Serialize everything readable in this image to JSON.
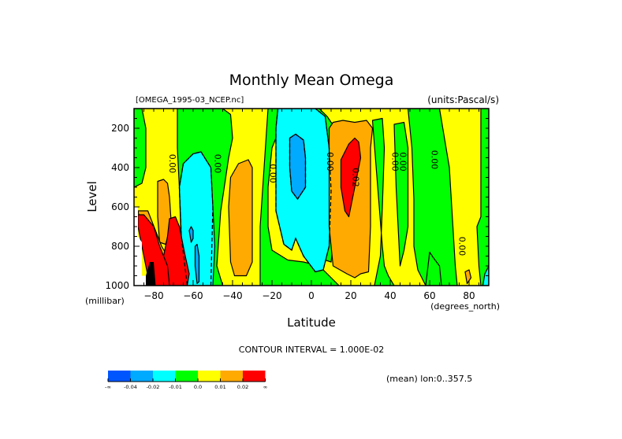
{
  "chart_data": {
    "type": "heatmap",
    "subtype": "filled-contour",
    "title": "Monthly Mean Omega",
    "file_label": "[OMEGA_1995-03_NCEP.nc]",
    "units_label": "(units:Pascal/s)",
    "xlabel": "Latitude",
    "x_units": "(degrees_north)",
    "ylabel": "Level",
    "y_units": "(millibar)",
    "xlim": [
      -90,
      90
    ],
    "ylim": [
      1000,
      100
    ],
    "x_ticks": [
      -80,
      -60,
      -40,
      -20,
      0,
      20,
      40,
      60,
      80
    ],
    "x_tick_labels": [
      "-80",
      "-60",
      "-40",
      "-20",
      "0",
      "20",
      "40",
      "60",
      "80"
    ],
    "y_ticks": [
      200,
      400,
      600,
      800,
      1000
    ],
    "y_tick_labels": [
      "200",
      "400",
      "600",
      "800",
      "1000"
    ],
    "contour_interval_text": "CONTOUR INTERVAL = 1.000E-02",
    "footer_text": "(mean) lon:0..357.5",
    "colorbar": {
      "colors": [
        "#0055ff",
        "#00aaff",
        "#00ffff",
        "#00ff00",
        "#ffff00",
        "#ffaa00",
        "#ff0000"
      ],
      "labels": [
        "-∞",
        "-0.04",
        "-0.02",
        "-0.01",
        "0.0",
        "0.01",
        "0.02",
        "∞"
      ]
    },
    "contour_labels": [
      {
        "text": "0.00",
        "lat": -72,
        "lev": 380
      },
      {
        "text": "0.00",
        "lat": -49,
        "lev": 380
      },
      {
        "text": "0.00",
        "lat": -21,
        "lev": 430
      },
      {
        "text": "0.00",
        "lat": 8,
        "lev": 370
      },
      {
        "text": "0.02",
        "lat": 21,
        "lev": 450
      },
      {
        "text": "0.00",
        "lat": 41,
        "lev": 370
      },
      {
        "text": "0.00",
        "lat": 45,
        "lev": 370
      },
      {
        "text": "0.00",
        "lat": 61,
        "lev": 360
      },
      {
        "text": "0.00",
        "lat": 75,
        "lev": 800
      }
    ],
    "regions": [
      {
        "level": "0.0",
        "color": "#ffff00",
        "poly": [
          [
            -90,
            100
          ],
          [
            90,
            100
          ],
          [
            90,
            1000
          ],
          [
            -90,
            1000
          ]
        ]
      },
      {
        "level": "-0.01",
        "color": "#00ff00",
        "poly": [
          [
            -90,
            100
          ],
          [
            -86,
            100
          ],
          [
            -84,
            200
          ],
          [
            -84,
            400
          ],
          [
            -86,
            480
          ],
          [
            -90,
            500
          ]
        ]
      },
      {
        "level": "-0.01",
        "color": "#00ff00",
        "poly": [
          [
            -68,
            100
          ],
          [
            -45,
            100
          ],
          [
            -41,
            130
          ],
          [
            -40,
            250
          ],
          [
            -42,
            350
          ],
          [
            -46,
            620
          ],
          [
            -48,
            900
          ],
          [
            -45,
            1000
          ],
          [
            -62,
            1000
          ],
          [
            -66,
            800
          ],
          [
            -67,
            500
          ],
          [
            -68,
            300
          ]
        ]
      },
      {
        "level": "-0.01",
        "color": "#00ff00",
        "poly": [
          [
            -22,
            100
          ],
          [
            -12,
            100
          ],
          [
            -10,
            150
          ],
          [
            -16,
            200
          ],
          [
            -20,
            300
          ],
          [
            -22,
            500
          ],
          [
            -22,
            700
          ],
          [
            -20,
            820
          ],
          [
            -12,
            870
          ],
          [
            -4,
            880
          ],
          [
            4,
            900
          ],
          [
            10,
            960
          ],
          [
            14,
            1000
          ],
          [
            -26,
            1000
          ],
          [
            -26,
            700
          ],
          [
            -24,
            400
          ]
        ]
      },
      {
        "level": "-0.01",
        "color": "#00ff00",
        "poly": [
          [
            -4,
            100
          ],
          [
            4,
            100
          ],
          [
            8,
            140
          ],
          [
            12,
            200
          ],
          [
            12,
            700
          ],
          [
            10,
            880
          ],
          [
            4,
            860
          ],
          [
            -4,
            850
          ],
          [
            -8,
            300
          ]
        ]
      },
      {
        "level": "-0.01",
        "color": "#00ff00",
        "poly": [
          [
            -88,
            100
          ],
          [
            -90,
            100
          ]
        ]
      },
      {
        "level": "-0.01",
        "color": "#00ff00",
        "poly": [
          [
            31,
            160
          ],
          [
            36,
            150
          ],
          [
            37,
            300
          ],
          [
            36,
            600
          ],
          [
            35,
            850
          ],
          [
            32,
            1000
          ],
          [
            42,
            1000
          ],
          [
            39,
            950
          ],
          [
            37,
            900
          ],
          [
            36,
            800
          ]
        ]
      },
      {
        "level": "-0.01",
        "color": "#00ff00",
        "poly": [
          [
            42,
            180
          ],
          [
            47,
            170
          ],
          [
            49,
            300
          ],
          [
            49,
            700
          ],
          [
            47,
            820
          ],
          [
            45,
            900
          ],
          [
            44,
            700
          ],
          [
            43,
            500
          ]
        ]
      },
      {
        "level": "-0.01",
        "color": "#00ff00",
        "poly": [
          [
            49,
            100
          ],
          [
            65,
            100
          ],
          [
            70,
            400
          ],
          [
            73,
            900
          ],
          [
            74,
            1000
          ],
          [
            58,
            1000
          ],
          [
            54,
            920
          ],
          [
            52,
            800
          ],
          [
            52,
            560
          ],
          [
            51,
            300
          ]
        ]
      },
      {
        "level": "-0.01",
        "color": "#00ff00",
        "poly": [
          [
            60,
            830
          ],
          [
            62,
            860
          ],
          [
            65,
            900
          ],
          [
            66,
            1000
          ],
          [
            58,
            1000
          ]
        ]
      },
      {
        "level": "-0.01",
        "color": "#00ff00",
        "poly": [
          [
            86,
            100
          ],
          [
            90,
            100
          ],
          [
            90,
            1000
          ],
          [
            86,
            1000
          ],
          [
            85,
            900
          ],
          [
            84,
            700
          ],
          [
            86,
            650
          ]
        ]
      },
      {
        "level": "-0.02",
        "color": "#00ffff",
        "poly": [
          [
            -65,
            380
          ],
          [
            -60,
            330
          ],
          [
            -56,
            320
          ],
          [
            -51,
            400
          ],
          [
            -50,
            600
          ],
          [
            -49,
            800
          ],
          [
            -50,
            1000
          ],
          [
            -63,
            1000
          ],
          [
            -66,
            750
          ],
          [
            -67,
            500
          ]
        ]
      },
      {
        "level": "-0.02",
        "color": "#00ffff",
        "poly": [
          [
            -17,
            100
          ],
          [
            2,
            100
          ],
          [
            7,
            140
          ],
          [
            9,
            300
          ],
          [
            10,
            520
          ],
          [
            9,
            800
          ],
          [
            6,
            920
          ],
          [
            2,
            930
          ],
          [
            -4,
            850
          ],
          [
            -8,
            760
          ],
          [
            -10,
            820
          ],
          [
            -14,
            790
          ],
          [
            -18,
            620
          ],
          [
            -18,
            200
          ]
        ]
      },
      {
        "level": "-0.02",
        "color": "#00ffff",
        "poly": [
          [
            -90,
            100
          ],
          [
            -90,
            100
          ]
        ]
      },
      {
        "level": "-0.02",
        "color": "#00ffff",
        "poly": [
          [
            -90,
            200
          ],
          [
            -90,
            200
          ]
        ]
      },
      {
        "level": "-0.02",
        "color": "#00ffff",
        "poly": [
          [
            88,
            940
          ],
          [
            90,
            900
          ],
          [
            90,
            1000
          ],
          [
            87,
            1000
          ]
        ]
      },
      {
        "level": "-0.04",
        "color": "#00aaff",
        "poly": [
          [
            -62,
            720
          ],
          [
            -61,
            700
          ],
          [
            -60,
            720
          ],
          [
            -60,
            760
          ],
          [
            -61,
            780
          ]
        ]
      },
      {
        "level": "-0.04",
        "color": "#00aaff",
        "poly": [
          [
            -59,
            800
          ],
          [
            -58,
            790
          ],
          [
            -57,
            850
          ],
          [
            -57,
            980
          ],
          [
            -58,
            990
          ],
          [
            -59,
            900
          ]
        ]
      },
      {
        "level": "-0.04",
        "color": "#00aaff",
        "poly": [
          [
            -11,
            250
          ],
          [
            -8,
            230
          ],
          [
            -4,
            260
          ],
          [
            -3,
            350
          ],
          [
            -3,
            500
          ],
          [
            -7,
            560
          ],
          [
            -10,
            520
          ],
          [
            -11,
            400
          ]
        ]
      },
      {
        "level": "0.01",
        "color": "#ffaa00",
        "poly": [
          [
            -78,
            470
          ],
          [
            -75,
            460
          ],
          [
            -73,
            480
          ],
          [
            -72,
            550
          ],
          [
            -71,
            700
          ],
          [
            -74,
            790
          ],
          [
            -77,
            780
          ],
          [
            -78,
            650
          ]
        ]
      },
      {
        "level": "0.01",
        "color": "#ffaa00",
        "poly": [
          [
            -41,
            450
          ],
          [
            -37,
            380
          ],
          [
            -32,
            360
          ],
          [
            -30,
            400
          ],
          [
            -30,
            500
          ],
          [
            -30,
            700
          ],
          [
            -30,
            880
          ],
          [
            -33,
            950
          ],
          [
            -39,
            950
          ],
          [
            -41,
            880
          ],
          [
            -42,
            600
          ]
        ]
      },
      {
        "level": "0.01",
        "color": "#ffaa00",
        "poly": [
          [
            9,
            200
          ],
          [
            11,
            170
          ],
          [
            16,
            160
          ],
          [
            22,
            170
          ],
          [
            28,
            160
          ],
          [
            31,
            200
          ],
          [
            30,
            300
          ],
          [
            30,
            700
          ],
          [
            29,
            930
          ],
          [
            25,
            940
          ],
          [
            22,
            960
          ],
          [
            18,
            940
          ],
          [
            11,
            900
          ],
          [
            9,
            700
          ]
        ]
      },
      {
        "level": "0.01",
        "color": "#ffaa00",
        "poly": [
          [
            -88,
            620
          ],
          [
            -83,
            620
          ],
          [
            -76,
            800
          ],
          [
            -70,
            900
          ],
          [
            -66,
            960
          ],
          [
            -66,
            1000
          ],
          [
            -80,
            1000
          ],
          [
            -84,
            800
          ]
        ]
      },
      {
        "level": "0.01",
        "color": "#ffaa00",
        "poly": [
          [
            78,
            930
          ],
          [
            80,
            920
          ],
          [
            81,
            960
          ],
          [
            79,
            990
          ]
        ]
      },
      {
        "level": "0.02",
        "color": "#ff0000",
        "poly": [
          [
            15,
            360
          ],
          [
            19,
            280
          ],
          [
            22,
            250
          ],
          [
            24,
            270
          ],
          [
            25,
            350
          ],
          [
            22,
            500
          ],
          [
            19,
            650
          ],
          [
            17,
            620
          ],
          [
            15,
            500
          ]
        ]
      },
      {
        "level": "0.02",
        "color": "#ff0000",
        "poly": [
          [
            -72,
            660
          ],
          [
            -69,
            650
          ],
          [
            -67,
            700
          ],
          [
            -64,
            850
          ],
          [
            -62,
            940
          ],
          [
            -63,
            1000
          ],
          [
            -72,
            1000
          ],
          [
            -74,
            950
          ],
          [
            -75,
            850
          ],
          [
            -73,
            750
          ]
        ]
      },
      {
        "level": "0.02",
        "color": "#ff0000",
        "poly": [
          [
            -88,
            640
          ],
          [
            -85,
            640
          ],
          [
            -80,
            700
          ],
          [
            -77,
            800
          ],
          [
            -73,
            900
          ],
          [
            -72,
            1000
          ],
          [
            -82,
            1000
          ],
          [
            -86,
            800
          ],
          [
            -88,
            700
          ]
        ]
      },
      {
        "level": "missing",
        "color": "#000000",
        "poly": [
          [
            -82,
            880
          ],
          [
            -80,
            880
          ],
          [
            -79,
            1000
          ],
          [
            -84,
            1000
          ],
          [
            -84,
            950
          ]
        ]
      },
      {
        "level": "missing",
        "color": "#ffffff",
        "poly": [
          [
            -90,
            600
          ],
          [
            -88,
            600
          ],
          [
            -88,
            750
          ],
          [
            -86,
            780
          ],
          [
            -86,
            950
          ],
          [
            -84,
            950
          ],
          [
            -84,
            1000
          ],
          [
            -90,
            1000
          ]
        ]
      }
    ],
    "dashed_contours": [
      [
        [
          -51,
          1000
        ],
        [
          -50,
          600
        ],
        [
          -51,
          400
        ],
        [
          -56,
          320
        ],
        [
          -60,
          330
        ],
        [
          -65,
          380
        ],
        [
          -67,
          500
        ],
        [
          -66,
          750
        ],
        [
          -63,
          1000
        ]
      ],
      [
        [
          -17,
          100
        ],
        [
          -18,
          200
        ],
        [
          -18,
          620
        ],
        [
          -14,
          790
        ],
        [
          -10,
          820
        ],
        [
          -8,
          760
        ],
        [
          -4,
          850
        ],
        [
          2,
          930
        ],
        [
          6,
          920
        ],
        [
          9,
          800
        ],
        [
          10,
          520
        ],
        [
          9,
          300
        ],
        [
          7,
          140
        ],
        [
          2,
          100
        ]
      ],
      [
        [
          -11,
          250
        ],
        [
          -8,
          230
        ],
        [
          -4,
          260
        ],
        [
          -3,
          350
        ],
        [
          -3,
          500
        ],
        [
          -7,
          560
        ],
        [
          -10,
          520
        ],
        [
          -11,
          400
        ],
        [
          -11,
          250
        ]
      ]
    ]
  }
}
